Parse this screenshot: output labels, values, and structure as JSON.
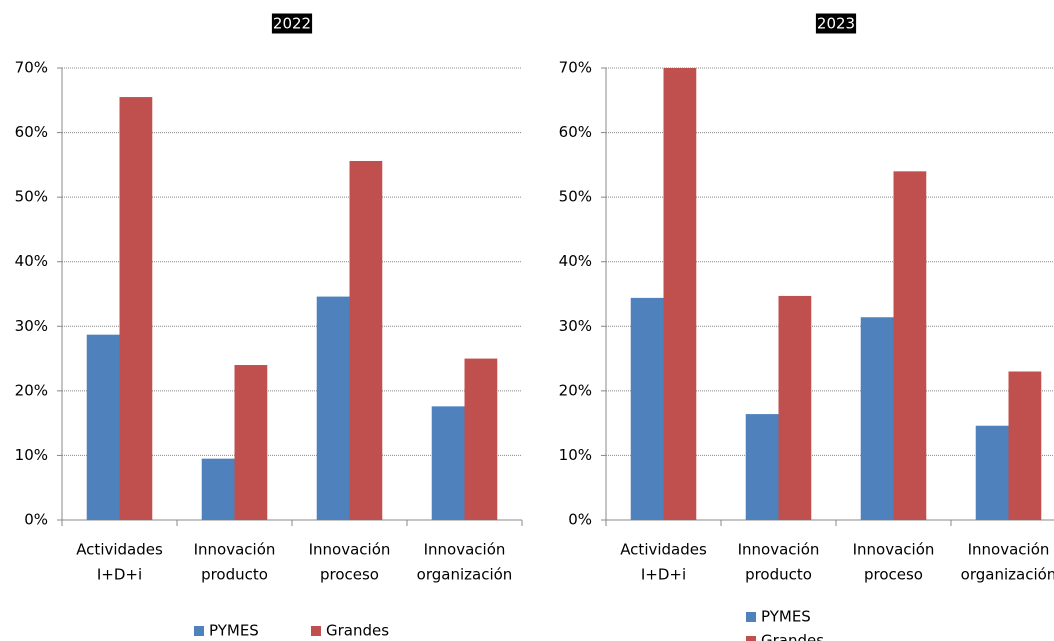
{
  "chart_data": [
    {
      "type": "bar",
      "title": "2022",
      "categories": [
        [
          "Actividades",
          "I+D+i"
        ],
        [
          "Innovación",
          "producto"
        ],
        [
          "Innovación",
          "proceso"
        ],
        [
          "Innovación",
          "organización"
        ]
      ],
      "series": [
        {
          "name": "PYMES",
          "color": "#4f81bd",
          "values": [
            28.7,
            9.5,
            34.6,
            17.6
          ]
        },
        {
          "name": "Grandes",
          "color": "#c0504d",
          "values": [
            65.5,
            24,
            55.6,
            25
          ]
        }
      ],
      "ylim": [
        0,
        70
      ],
      "yticks": [
        {
          "value": 0,
          "label": "0%"
        },
        {
          "value": 10,
          "label": "10%"
        },
        {
          "value": 20,
          "label": "20%"
        },
        {
          "value": 30,
          "label": "30%"
        },
        {
          "value": 40,
          "label": "40%"
        },
        {
          "value": 50,
          "label": "50%"
        },
        {
          "value": 60,
          "label": "60%"
        },
        {
          "value": 70,
          "label": "70%"
        }
      ],
      "grid": true,
      "legend": "bottom"
    },
    {
      "type": "bar",
      "title": "2023",
      "categories": [
        [
          "Actividades",
          "I+D+i"
        ],
        [
          "Innovación",
          "producto"
        ],
        [
          "Innovación",
          "proceso"
        ],
        [
          "Innovación",
          "organización"
        ]
      ],
      "series": [
        {
          "name": "PYMES",
          "color": "#4f81bd",
          "values": [
            34.4,
            16.4,
            31.4,
            14.6
          ]
        },
        {
          "name": "Grandes",
          "color": "#c0504d",
          "values": [
            70,
            34.7,
            54,
            23
          ]
        }
      ],
      "ylim": [
        0,
        70
      ],
      "yticks": [
        {
          "value": 0,
          "label": "0%"
        },
        {
          "value": 10,
          "label": "10%"
        },
        {
          "value": 20,
          "label": "20%"
        },
        {
          "value": 30,
          "label": "30%"
        },
        {
          "value": 40,
          "label": "40%"
        },
        {
          "value": 50,
          "label": "50%"
        },
        {
          "value": 60,
          "label": "60%"
        },
        {
          "value": 70,
          "label": "70%"
        }
      ],
      "grid": true,
      "legend": "bottom"
    }
  ]
}
